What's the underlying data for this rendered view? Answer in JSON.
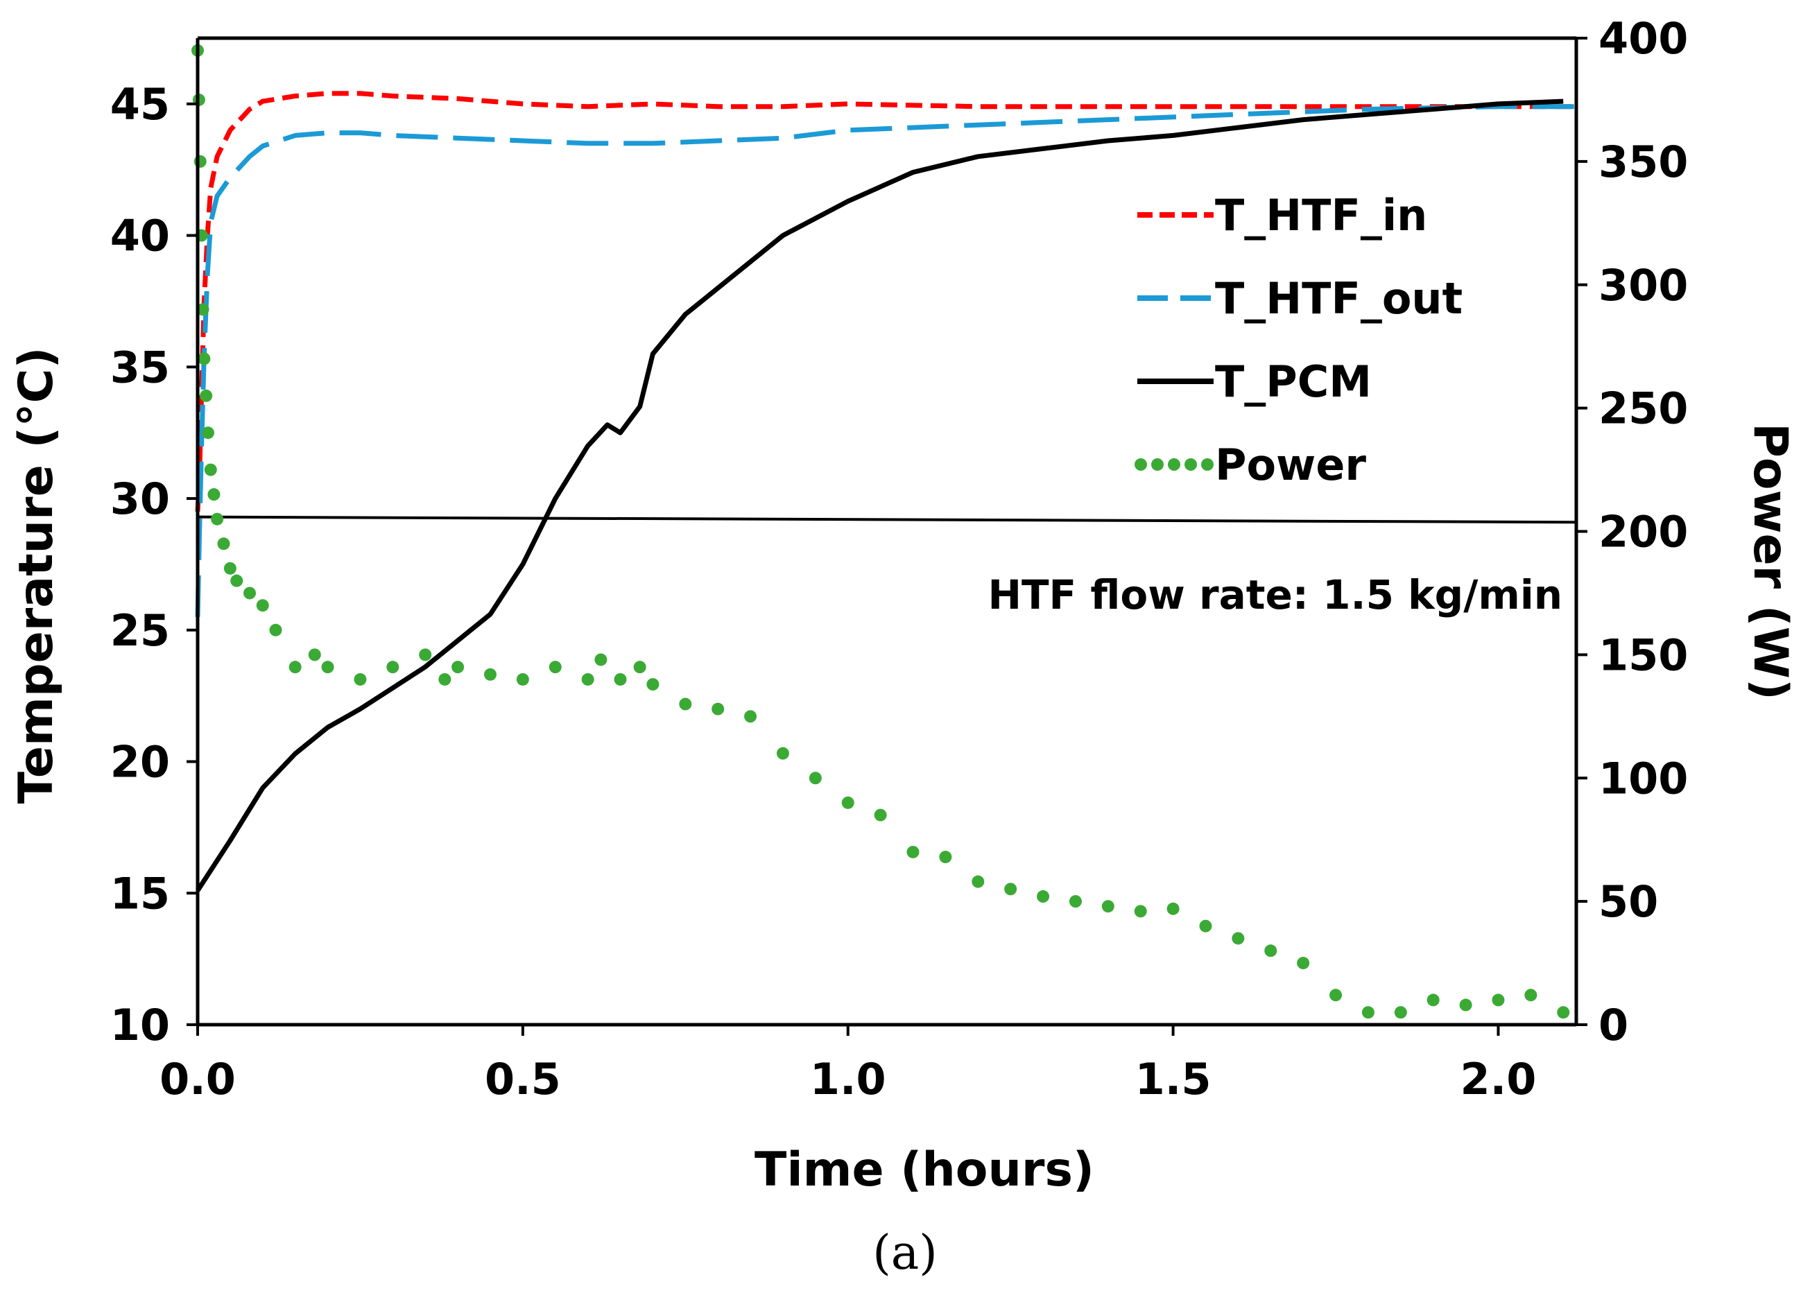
{
  "chart_data": {
    "type": "line",
    "title": "",
    "xlabel": "Time (hours)",
    "ylabel": "Temperature (°C)",
    "y2label": "Power (W)",
    "xlim": [
      0,
      2.12
    ],
    "ylim": [
      10,
      47.5
    ],
    "y2lim": [
      0,
      400
    ],
    "xticks": [
      "0.0",
      "0.5",
      "1.0",
      "1.5",
      "2.0"
    ],
    "xtick_values": [
      0,
      0.5,
      1.0,
      1.5,
      2.0
    ],
    "yticks": [
      "10",
      "15",
      "20",
      "25",
      "30",
      "35",
      "40",
      "45"
    ],
    "ytick_values": [
      10,
      15,
      20,
      25,
      30,
      35,
      40,
      45
    ],
    "y2ticks": [
      "0",
      "50",
      "100",
      "150",
      "200",
      "250",
      "300",
      "350",
      "400"
    ],
    "y2tick_values": [
      0,
      50,
      100,
      150,
      200,
      250,
      300,
      350,
      400
    ],
    "grid": false,
    "legend_position": "top-right",
    "annotation": "HTF flow rate: 1.5 kg/min",
    "caption": "(a)",
    "reference_line": {
      "x": [
        0,
        2.12
      ],
      "y": [
        29.3,
        29.1
      ],
      "axis": "left"
    },
    "series": [
      {
        "name": "T_HTF_in",
        "axis": "left",
        "color": "#ff0000",
        "style": "short-dash",
        "x": [
          0,
          0.003,
          0.006,
          0.01,
          0.015,
          0.02,
          0.03,
          0.05,
          0.08,
          0.1,
          0.15,
          0.2,
          0.25,
          0.3,
          0.4,
          0.5,
          0.6,
          0.7,
          0.8,
          0.9,
          1.0,
          1.2,
          1.4,
          1.6,
          1.8,
          2.0,
          2.12
        ],
        "y": [
          29.5,
          31,
          34,
          37.5,
          40,
          41.8,
          43,
          44,
          44.8,
          45.1,
          45.3,
          45.4,
          45.4,
          45.3,
          45.2,
          45.0,
          44.9,
          45.0,
          44.9,
          44.9,
          45.0,
          44.9,
          44.9,
          44.9,
          44.9,
          44.9,
          44.9
        ]
      },
      {
        "name": "T_HTF_out",
        "axis": "left",
        "color": "#1b9ad6",
        "style": "long-dash",
        "x": [
          0,
          0.003,
          0.006,
          0.01,
          0.015,
          0.02,
          0.03,
          0.05,
          0.08,
          0.1,
          0.15,
          0.2,
          0.25,
          0.3,
          0.4,
          0.5,
          0.6,
          0.7,
          0.8,
          0.9,
          1.0,
          1.2,
          1.4,
          1.6,
          1.8,
          2.0,
          2.12
        ],
        "y": [
          25.5,
          29,
          32,
          35.5,
          38.5,
          40.5,
          41.5,
          42.2,
          43,
          43.4,
          43.8,
          43.9,
          43.9,
          43.8,
          43.7,
          43.6,
          43.5,
          43.5,
          43.6,
          43.7,
          44.0,
          44.2,
          44.4,
          44.6,
          44.8,
          44.9,
          44.9
        ]
      },
      {
        "name": "T_PCM",
        "axis": "left",
        "color": "#000000",
        "style": "solid",
        "x": [
          0,
          0.05,
          0.1,
          0.15,
          0.2,
          0.25,
          0.3,
          0.35,
          0.4,
          0.45,
          0.5,
          0.55,
          0.6,
          0.63,
          0.65,
          0.68,
          0.7,
          0.75,
          0.8,
          0.9,
          1.0,
          1.1,
          1.2,
          1.3,
          1.4,
          1.5,
          1.6,
          1.7,
          1.8,
          1.9,
          2.0,
          2.1
        ],
        "y": [
          15.1,
          17.0,
          19.0,
          20.3,
          21.3,
          22.0,
          22.8,
          23.6,
          24.6,
          25.6,
          27.5,
          30.0,
          32.0,
          32.8,
          32.5,
          33.5,
          35.5,
          37.0,
          38.0,
          40.0,
          41.3,
          42.4,
          43.0,
          43.3,
          43.6,
          43.8,
          44.1,
          44.4,
          44.6,
          44.8,
          45.0,
          45.1
        ]
      },
      {
        "name": "Power",
        "axis": "right",
        "color": "#3aaa35",
        "style": "dotted",
        "x": [
          0.0,
          0.002,
          0.004,
          0.006,
          0.008,
          0.01,
          0.013,
          0.016,
          0.02,
          0.025,
          0.03,
          0.04,
          0.05,
          0.06,
          0.08,
          0.1,
          0.12,
          0.15,
          0.18,
          0.2,
          0.25,
          0.3,
          0.35,
          0.38,
          0.4,
          0.45,
          0.5,
          0.55,
          0.6,
          0.62,
          0.65,
          0.68,
          0.7,
          0.75,
          0.8,
          0.85,
          0.9,
          0.95,
          1.0,
          1.05,
          1.1,
          1.15,
          1.2,
          1.25,
          1.3,
          1.35,
          1.4,
          1.45,
          1.5,
          1.55,
          1.6,
          1.65,
          1.7,
          1.75,
          1.8,
          1.85,
          1.9,
          1.95,
          2.0,
          2.05,
          2.1
        ],
        "y": [
          395,
          375,
          350,
          320,
          290,
          270,
          255,
          240,
          225,
          215,
          205,
          195,
          185,
          180,
          175,
          170,
          160,
          145,
          150,
          145,
          140,
          145,
          150,
          140,
          145,
          142,
          140,
          145,
          140,
          148,
          140,
          145,
          138,
          130,
          128,
          125,
          110,
          100,
          90,
          85,
          70,
          68,
          58,
          55,
          52,
          50,
          48,
          46,
          47,
          40,
          35,
          30,
          25,
          12,
          5,
          5,
          10,
          8,
          10,
          12,
          5
        ]
      }
    ]
  }
}
